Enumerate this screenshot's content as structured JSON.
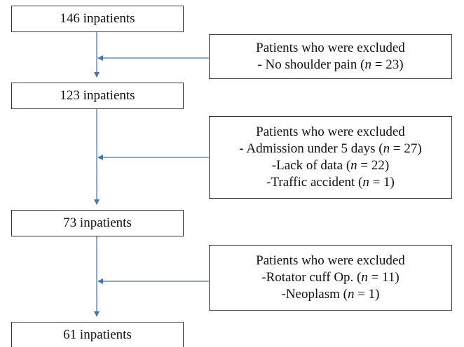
{
  "boxes": [
    {
      "label": "146 inpatients"
    },
    {
      "label": "123 inpatients"
    },
    {
      "label": "73 inpatients"
    },
    {
      "label": "61 inpatients"
    }
  ],
  "exclusions": [
    {
      "title": "Patients who were excluded",
      "items": [
        "- No shoulder pain (n = 23)"
      ]
    },
    {
      "title": "Patients who were excluded",
      "items": [
        "- Admission under 5 days (n = 27)",
        "-Lack of data (n = 22)",
        "-Traffic accident (n = 1)"
      ]
    },
    {
      "title": "Patients who were excluded",
      "items": [
        "-Rotator cuff Op. (n = 11)",
        "-Neoplasm (n = 1)"
      ]
    }
  ]
}
